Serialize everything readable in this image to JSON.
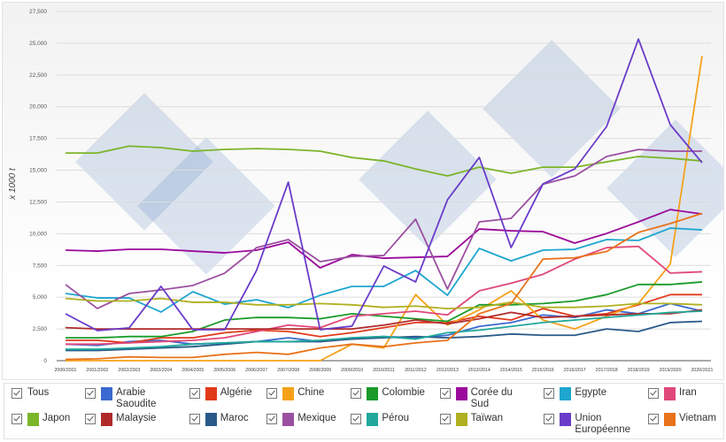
{
  "chart_data": {
    "type": "line",
    "ylabel": "x 1000 t",
    "ylim": [
      0,
      27500
    ],
    "yticks": [
      "0",
      "2,500",
      "5,000",
      "7,500",
      "10,000",
      "12,500",
      "15,000",
      "17,500",
      "20,000",
      "22,500",
      "25,000",
      "27,500"
    ],
    "grid": true,
    "legend_placement": "bottom",
    "x": [
      "2000/2001",
      "2001/2002",
      "2002/2003",
      "2003/2004",
      "2004/2005",
      "2005/2006",
      "2006/2007",
      "2007/2008",
      "2008/2009",
      "2009/2010",
      "2010/2011",
      "2011/2012",
      "2012/2013",
      "2013/2014",
      "2014/2015",
      "2015/2016",
      "2016/2017",
      "2017/2018",
      "2018/2019",
      "2019/2020",
      "2020/2021"
    ],
    "series": [
      {
        "name": "Arabie Saoudite",
        "color": "#3a6ad0",
        "values": [
          1300,
          1200,
          1500,
          1600,
          1300,
          1400,
          1500,
          1800,
          1500,
          1800,
          1900,
          1800,
          2000,
          2700,
          3000,
          3600,
          3400,
          4000,
          3700,
          4500,
          3900
        ]
      },
      {
        "name": "Algérie",
        "color": "#e03a1a",
        "values": [
          1600,
          1600,
          1400,
          1800,
          1800,
          2200,
          2400,
          2300,
          1900,
          2200,
          2600,
          3000,
          3000,
          3500,
          3200,
          4100,
          3500,
          3700,
          4400,
          5200,
          5200
        ]
      },
      {
        "name": "Chine",
        "color": "#f5a21a",
        "values": [
          0,
          0,
          0,
          0,
          0,
          0,
          0,
          0,
          0,
          1300,
          1000,
          5200,
          2800,
          4000,
          5500,
          3200,
          2500,
          3500,
          4500,
          7600,
          24000
        ]
      },
      {
        "name": "Colombie",
        "color": "#1a9a2a",
        "values": [
          1800,
          1800,
          1900,
          1900,
          2300,
          3200,
          3400,
          3400,
          3300,
          3700,
          3500,
          3300,
          3100,
          4400,
          4400,
          4500,
          4700,
          5200,
          6000,
          6000,
          6200
        ]
      },
      {
        "name": "Corée du Sud",
        "color": "#9b0a9b",
        "values": [
          8700,
          8630,
          8770,
          8770,
          8630,
          8490,
          8700,
          9330,
          7310,
          8350,
          8070,
          8140,
          8210,
          10370,
          10230,
          10160,
          9260,
          10020,
          10930,
          11900,
          11550
        ]
      },
      {
        "name": "Egypte",
        "color": "#1ea6cf",
        "values": [
          5290,
          4940,
          4940,
          3830,
          5430,
          4450,
          4800,
          4180,
          5150,
          5850,
          5850,
          7100,
          5150,
          8840,
          7860,
          8700,
          8770,
          9540,
          9470,
          10440,
          10300
        ]
      },
      {
        "name": "Iran",
        "color": "#e0487a",
        "values": [
          1300,
          1300,
          1400,
          1500,
          1600,
          1800,
          2300,
          2800,
          2600,
          3500,
          3700,
          3900,
          3600,
          5500,
          6100,
          6800,
          8000,
          8900,
          9000,
          6900,
          7000
        ]
      },
      {
        "name": "Japon",
        "color": "#7cb52a",
        "values": [
          16350,
          16350,
          16900,
          16780,
          16500,
          16640,
          16700,
          16640,
          16500,
          16000,
          15730,
          15100,
          14550,
          15240,
          14760,
          15240,
          15240,
          15660,
          16080,
          15940,
          15730
        ]
      },
      {
        "name": "Malaysie",
        "color": "#b02a2a",
        "values": [
          2600,
          2500,
          2500,
          2500,
          2500,
          2500,
          2500,
          2500,
          2500,
          2500,
          2800,
          3200,
          2900,
          3300,
          3800,
          3400,
          3500,
          3600,
          3700,
          3700,
          4000
        ]
      },
      {
        "name": "Maroc",
        "color": "#2a5a8a",
        "values": [
          800,
          800,
          900,
          1000,
          1100,
          1300,
          1500,
          1500,
          1500,
          1700,
          1800,
          1900,
          1800,
          1900,
          2100,
          2000,
          2000,
          2500,
          2300,
          3000,
          3100
        ]
      },
      {
        "name": "Mexique",
        "color": "#9b4fa1",
        "values": [
          5990,
          4110,
          5290,
          5570,
          5920,
          6890,
          8900,
          9540,
          7800,
          8210,
          8280,
          11140,
          5640,
          10930,
          11210,
          13900,
          14550,
          16080,
          16630,
          16500,
          16500
        ]
      },
      {
        "name": "Pérou",
        "color": "#20a89a",
        "values": [
          900,
          900,
          1000,
          1100,
          1300,
          1400,
          1500,
          1500,
          1600,
          1800,
          1900,
          1700,
          2200,
          2400,
          2700,
          3000,
          3200,
          3400,
          3600,
          3800,
          3900
        ]
      },
      {
        "name": "Taïwan",
        "color": "#b0b020",
        "values": [
          4900,
          4700,
          4700,
          4900,
          4600,
          4600,
          4400,
          4400,
          4500,
          4400,
          4200,
          4300,
          4100,
          4200,
          4600,
          4200,
          4200,
          4300,
          4500,
          4500,
          4400
        ]
      },
      {
        "name": "Union Européenne",
        "color": "#6a3cc9",
        "values": [
          3690,
          2370,
          2580,
          5850,
          2440,
          2440,
          7100,
          14060,
          2440,
          2720,
          7450,
          6200,
          12670,
          16010,
          8910,
          13920,
          15100,
          18440,
          25330,
          18580,
          15590
        ]
      },
      {
        "name": "Vietnam",
        "color": "#e8731a",
        "values": [
          100,
          150,
          300,
          250,
          250,
          500,
          650,
          500,
          1000,
          1300,
          1100,
          1400,
          1600,
          3700,
          4500,
          8000,
          8100,
          8600,
          10100,
          10800,
          11600
        ]
      }
    ]
  },
  "legend": {
    "all_label": "Tous",
    "items": [
      {
        "label": "Arabie Saoudite",
        "color": "#3a6ad0"
      },
      {
        "label": "Algérie",
        "color": "#e03a1a"
      },
      {
        "label": "Chine",
        "color": "#f5a21a"
      },
      {
        "label": "Colombie",
        "color": "#1a9a2a"
      },
      {
        "label": "Corée du Sud",
        "color": "#9b0a9b"
      },
      {
        "label": "Egypte",
        "color": "#1ea6cf"
      },
      {
        "label": "Iran",
        "color": "#e0487a"
      },
      {
        "label": "Japon",
        "color": "#7cb52a"
      },
      {
        "label": "Malaysie",
        "color": "#b02a2a"
      },
      {
        "label": "Maroc",
        "color": "#2a5a8a"
      },
      {
        "label": "Mexique",
        "color": "#9b4fa1"
      },
      {
        "label": "Pérou",
        "color": "#20a89a"
      },
      {
        "label": "Taïwan",
        "color": "#b0b020"
      },
      {
        "label": "Union Européenne",
        "color": "#6a3cc9"
      },
      {
        "label": "Vietnam",
        "color": "#e8731a"
      }
    ]
  }
}
